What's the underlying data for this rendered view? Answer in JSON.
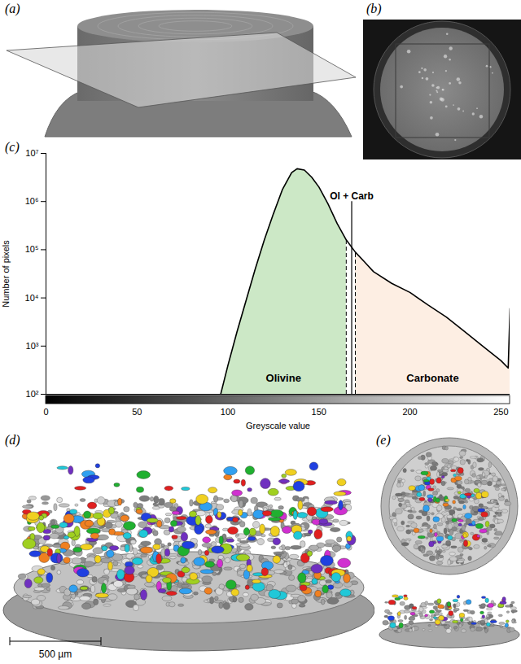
{
  "panel_labels": [
    "(a)",
    "(b)",
    "(c)",
    "(d)",
    "(e)"
  ],
  "scale_bar": "500 µm",
  "chart_data": {
    "type": "area",
    "xlabel": "Greyscale value",
    "ylabel": "Number of pixels",
    "x": [
      96,
      100,
      105,
      110,
      115,
      120,
      125,
      130,
      135,
      138,
      142,
      146,
      150,
      155,
      160,
      165,
      170,
      175,
      180,
      190,
      200,
      210,
      220,
      230,
      240,
      250,
      254,
      255
    ],
    "values": [
      100,
      400,
      2000,
      8900,
      40000,
      160000,
      560000,
      1800000,
      4000000,
      4800000,
      4500000,
      3200000,
      2000000,
      890000,
      350000,
      160000,
      89000,
      56000,
      35000,
      20000,
      13000,
      7100,
      4000,
      2000,
      1000,
      500,
      350,
      6000
    ],
    "color": "#000000",
    "xlim": [
      0,
      255
    ],
    "xticks": [
      0,
      50,
      100,
      150,
      200,
      250
    ],
    "ylim": [
      100,
      10000000
    ],
    "yticks": [
      {
        "value": 100,
        "label": "10²"
      },
      {
        "value": 1000,
        "label": "10³"
      },
      {
        "value": 10000,
        "label": "10⁴"
      },
      {
        "value": 100000,
        "label": "10⁵"
      },
      {
        "value": 1000000,
        "label": "10⁶"
      },
      {
        "value": 10000000,
        "label": "10⁷"
      }
    ],
    "log": "y",
    "regions": [
      {
        "name": "Olivine",
        "color": "#cce8c6",
        "from": 96,
        "to": 165
      },
      {
        "name": "Carbonate",
        "color": "#fdeee3",
        "from": 170,
        "to": 255
      }
    ],
    "thresholds": [
      {
        "x": 165,
        "line_style": "dashed"
      },
      {
        "x": 170,
        "line_style": "dashed"
      }
    ],
    "annotations": [
      {
        "text": "Ol + Carb",
        "x": 168,
        "y": 1000000,
        "line_style": "solid"
      }
    ]
  }
}
